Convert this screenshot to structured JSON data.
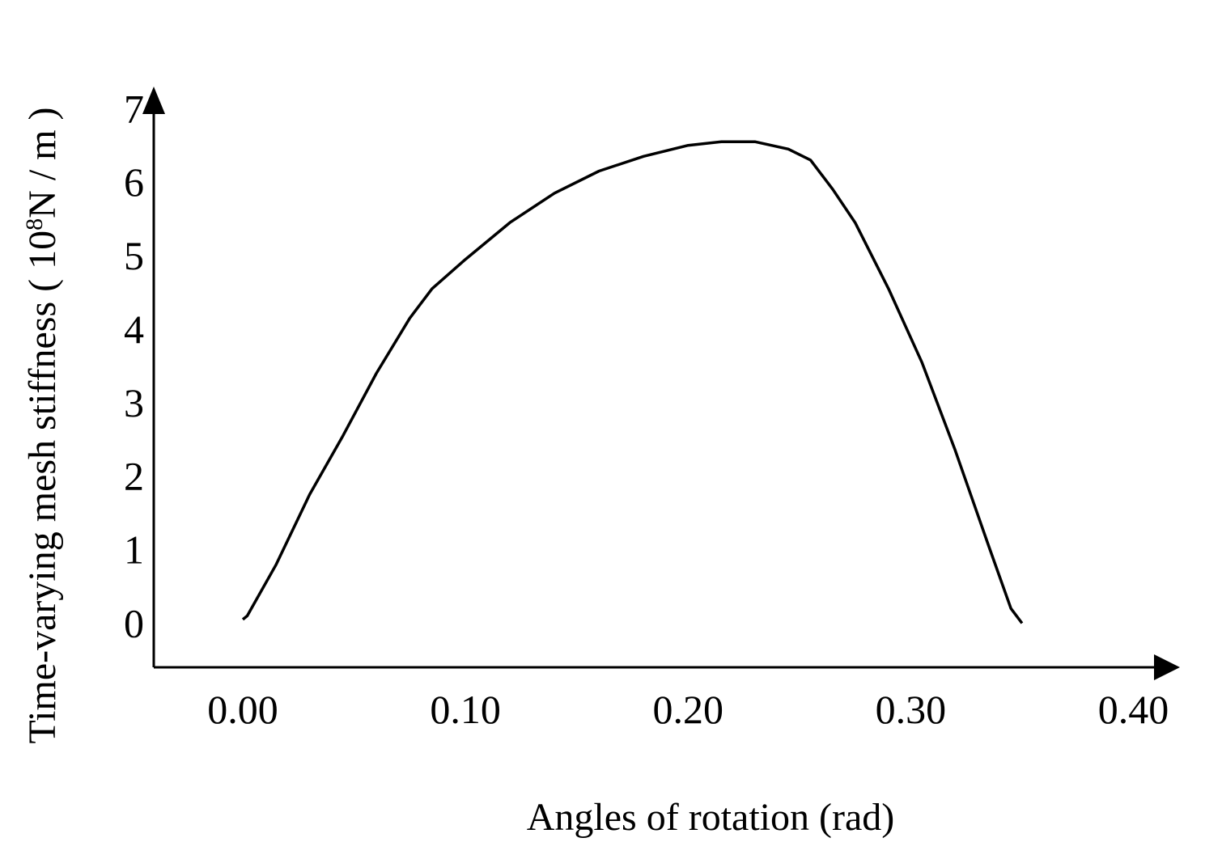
{
  "chart_data": {
    "type": "line",
    "title": "",
    "xlabel": "Angles of rotation (rad)",
    "ylabel_main": "Time-varying mesh stiffness ( 10",
    "ylabel_sup": "8",
    "ylabel_tail": "N / m )",
    "xlim": [
      -0.04,
      0.41
    ],
    "ylim": [
      -0.6,
      7.3
    ],
    "x_ticks": [
      "0.00",
      "0.10",
      "0.20",
      "0.30",
      "0.40"
    ],
    "y_ticks": [
      "0",
      "1",
      "2",
      "3",
      "4",
      "5",
      "6",
      "7"
    ],
    "grid": false,
    "series": [
      {
        "x": [
          0.0,
          0.002,
          0.015,
          0.03,
          0.045,
          0.06,
          0.075,
          0.085,
          0.1,
          0.12,
          0.14,
          0.16,
          0.18,
          0.2,
          0.215,
          0.23,
          0.245,
          0.255,
          0.265,
          0.275,
          0.29,
          0.305,
          0.32,
          0.335,
          0.345,
          0.35
        ],
        "y": [
          0.05,
          0.1,
          0.8,
          1.75,
          2.55,
          3.4,
          4.15,
          4.55,
          4.95,
          5.45,
          5.85,
          6.15,
          6.35,
          6.5,
          6.55,
          6.55,
          6.45,
          6.3,
          5.9,
          5.45,
          4.55,
          3.55,
          2.35,
          1.05,
          0.2,
          0.0
        ],
        "color": "#000000"
      }
    ]
  }
}
